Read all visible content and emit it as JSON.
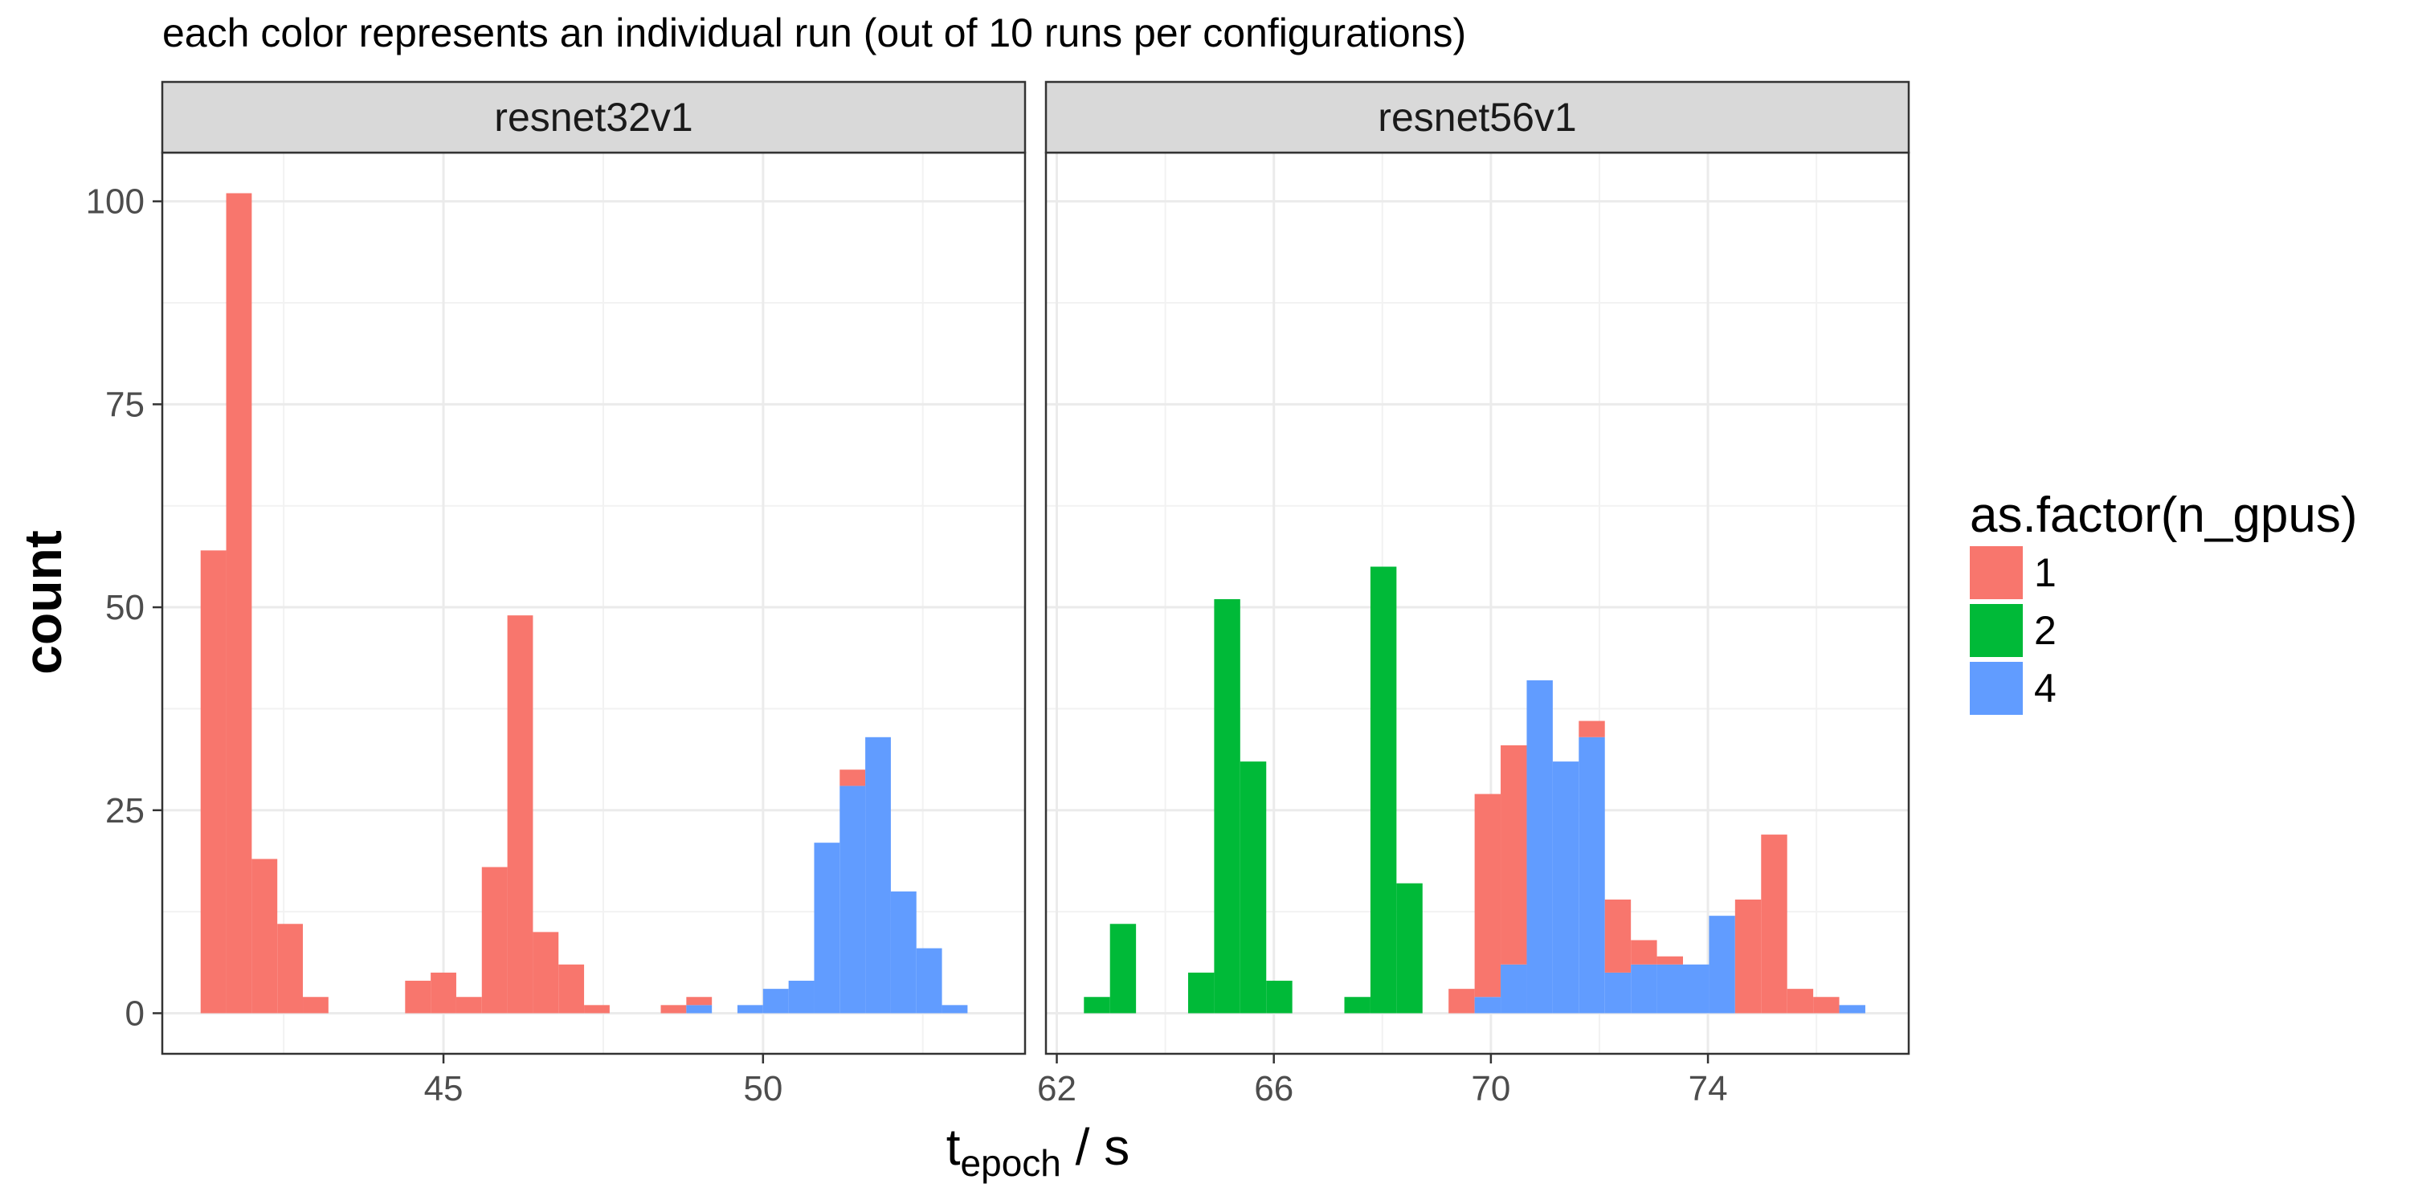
{
  "chart_data": {
    "type": "bar",
    "title": "each color represents an individual run (out of 10 runs per configurations)",
    "xlabel": {
      "main": "t",
      "subscript": "epoch",
      "suffix": " / s"
    },
    "ylabel": "count",
    "ylim": [
      -5,
      106
    ],
    "y_ticks": [
      0,
      25,
      50,
      75,
      100
    ],
    "grid": true,
    "stacked": true,
    "legend": {
      "position": "right",
      "title": "as.factor(n_gpus)",
      "entries": [
        {
          "label": "1",
          "color": "#F8766D"
        },
        {
          "label": "2",
          "color": "#00BA38"
        },
        {
          "label": "4",
          "color": "#619CFF"
        }
      ]
    },
    "panels": [
      {
        "name": "resnet32v1",
        "xlim": [
          40.6,
          54.1
        ],
        "x_ticks": [
          45,
          50
        ],
        "bin_width": 0.4,
        "bins": [
          {
            "x0": 41.2,
            "n1": 57,
            "n2": 0,
            "n4": 0
          },
          {
            "x0": 41.6,
            "n1": 101,
            "n2": 0,
            "n4": 0
          },
          {
            "x0": 42.0,
            "n1": 19,
            "n2": 0,
            "n4": 0
          },
          {
            "x0": 42.4,
            "n1": 11,
            "n2": 0,
            "n4": 0
          },
          {
            "x0": 42.8,
            "n1": 2,
            "n2": 0,
            "n4": 0
          },
          {
            "x0": 44.4,
            "n1": 4,
            "n2": 0,
            "n4": 0
          },
          {
            "x0": 44.8,
            "n1": 5,
            "n2": 0,
            "n4": 0
          },
          {
            "x0": 45.2,
            "n1": 2,
            "n2": 0,
            "n4": 0
          },
          {
            "x0": 45.6,
            "n1": 18,
            "n2": 0,
            "n4": 0
          },
          {
            "x0": 46.0,
            "n1": 49,
            "n2": 0,
            "n4": 0
          },
          {
            "x0": 46.4,
            "n1": 10,
            "n2": 0,
            "n4": 0
          },
          {
            "x0": 46.8,
            "n1": 6,
            "n2": 0,
            "n4": 0
          },
          {
            "x0": 47.2,
            "n1": 1,
            "n2": 0,
            "n4": 0
          },
          {
            "x0": 48.4,
            "n1": 1,
            "n2": 0,
            "n4": 0
          },
          {
            "x0": 48.8,
            "n1": 1,
            "n2": 0,
            "n4": 1
          },
          {
            "x0": 49.6,
            "n1": 0,
            "n2": 0,
            "n4": 1
          },
          {
            "x0": 50.0,
            "n1": 0,
            "n2": 0,
            "n4": 3
          },
          {
            "x0": 50.4,
            "n1": 0,
            "n2": 0,
            "n4": 4
          },
          {
            "x0": 50.8,
            "n1": 0,
            "n2": 0,
            "n4": 21
          },
          {
            "x0": 51.2,
            "n1": 2,
            "n2": 0,
            "n4": 28
          },
          {
            "x0": 51.6,
            "n1": 0,
            "n2": 0,
            "n4": 34
          },
          {
            "x0": 52.0,
            "n1": 0,
            "n2": 0,
            "n4": 15
          },
          {
            "x0": 52.4,
            "n1": 0,
            "n2": 0,
            "n4": 8
          },
          {
            "x0": 52.8,
            "n1": 0,
            "n2": 0,
            "n4": 1
          }
        ]
      },
      {
        "name": "resnet56v1",
        "xlim": [
          61.8,
          77.7
        ],
        "x_ticks": [
          62,
          66,
          70,
          74
        ],
        "bin_width": 0.48,
        "bins": [
          {
            "x0": 62.5,
            "n1": 0,
            "n2": 2,
            "n4": 0
          },
          {
            "x0": 62.98,
            "n1": 0,
            "n2": 11,
            "n4": 0
          },
          {
            "x0": 64.42,
            "n1": 0,
            "n2": 5,
            "n4": 0
          },
          {
            "x0": 64.9,
            "n1": 0,
            "n2": 51,
            "n4": 0
          },
          {
            "x0": 65.38,
            "n1": 0,
            "n2": 31,
            "n4": 0
          },
          {
            "x0": 65.86,
            "n1": 0,
            "n2": 4,
            "n4": 0
          },
          {
            "x0": 67.3,
            "n1": 0,
            "n2": 2,
            "n4": 0
          },
          {
            "x0": 67.78,
            "n1": 0,
            "n2": 55,
            "n4": 0
          },
          {
            "x0": 68.26,
            "n1": 0,
            "n2": 16,
            "n4": 0
          },
          {
            "x0": 69.22,
            "n1": 3,
            "n2": 0,
            "n4": 0
          },
          {
            "x0": 69.7,
            "n1": 25,
            "n2": 0,
            "n4": 2
          },
          {
            "x0": 70.18,
            "n1": 27,
            "n2": 0,
            "n4": 6
          },
          {
            "x0": 70.66,
            "n1": 0,
            "n2": 0,
            "n4": 41
          },
          {
            "x0": 71.14,
            "n1": 0,
            "n2": 0,
            "n4": 31
          },
          {
            "x0": 71.62,
            "n1": 2,
            "n2": 0,
            "n4": 34
          },
          {
            "x0": 72.1,
            "n1": 9,
            "n2": 0,
            "n4": 5
          },
          {
            "x0": 72.58,
            "n1": 3,
            "n2": 0,
            "n4": 6
          },
          {
            "x0": 73.06,
            "n1": 1,
            "n2": 0,
            "n4": 6
          },
          {
            "x0": 73.54,
            "n1": 0,
            "n2": 0,
            "n4": 6
          },
          {
            "x0": 74.02,
            "n1": 0,
            "n2": 0,
            "n4": 12
          },
          {
            "x0": 74.5,
            "n1": 14,
            "n2": 0,
            "n4": 0
          },
          {
            "x0": 74.98,
            "n1": 22,
            "n2": 0,
            "n4": 0
          },
          {
            "x0": 75.46,
            "n1": 3,
            "n2": 0,
            "n4": 0
          },
          {
            "x0": 75.94,
            "n1": 2,
            "n2": 0,
            "n4": 0
          },
          {
            "x0": 76.42,
            "n1": 0,
            "n2": 0,
            "n4": 1
          }
        ]
      }
    ]
  }
}
